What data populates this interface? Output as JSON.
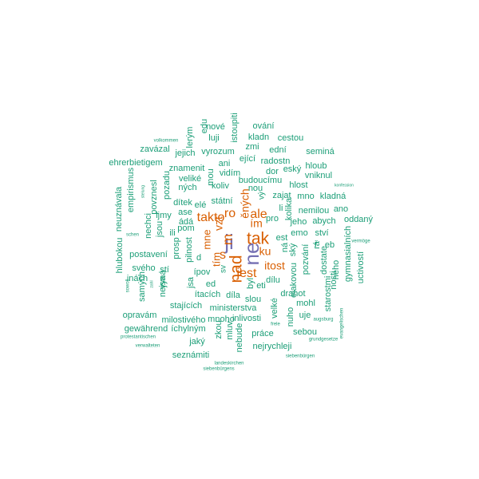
{
  "colors": {
    "background": "#ffffff",
    "teal": "#1b9e77",
    "orange": "#d95f02",
    "purple": "#7570b3"
  },
  "words": [
    {
      "text": "ji",
      "color": "purple",
      "rank": 1
    },
    {
      "text": "ne",
      "color": "purple",
      "rank": 1
    },
    {
      "text": "tak",
      "color": "orange",
      "rank": 2
    },
    {
      "text": "nad",
      "color": "orange",
      "rank": 2
    },
    {
      "text": "ale",
      "color": "orange",
      "rank": 3
    },
    {
      "text": "ro",
      "color": "orange",
      "rank": 3
    },
    {
      "text": "takto",
      "color": "orange",
      "rank": 3
    },
    {
      "text": "jest",
      "color": "orange",
      "rank": 3
    },
    {
      "text": "itost",
      "color": "orange",
      "rank": 3
    },
    {
      "text": "ím",
      "color": "orange",
      "rank": 3
    },
    {
      "text": "ku",
      "color": "orange",
      "rank": 3
    },
    {
      "text": "s",
      "color": "orange",
      "rank": 3
    },
    {
      "text": "m",
      "color": "orange",
      "rank": 3
    },
    {
      "text": "vzt",
      "color": "orange",
      "rank": 3
    },
    {
      "text": "ěných",
      "color": "orange",
      "rank": 3
    },
    {
      "text": "mne",
      "color": "orange",
      "rank": 3
    },
    {
      "text": "tím",
      "color": "orange",
      "rank": 3
    },
    {
      "text": "nové",
      "color": "teal",
      "rank": 4
    },
    {
      "text": "ování",
      "color": "teal",
      "rank": 4
    },
    {
      "text": "istoupiti",
      "color": "teal",
      "rank": 4
    },
    {
      "text": "kladn",
      "color": "teal",
      "rank": 4
    },
    {
      "text": "luji",
      "color": "teal",
      "rank": 4
    },
    {
      "text": "edu",
      "color": "teal",
      "rank": 4
    },
    {
      "text": "lerým",
      "color": "teal",
      "rank": 4
    },
    {
      "text": "zmi",
      "color": "teal",
      "rank": 4
    },
    {
      "text": "cestou",
      "color": "teal",
      "rank": 4
    },
    {
      "text": "volkommen",
      "color": "teal",
      "rank": 5
    },
    {
      "text": "zavázal",
      "color": "teal",
      "rank": 4
    },
    {
      "text": "jejich",
      "color": "teal",
      "rank": 4
    },
    {
      "text": "vyrozum",
      "color": "teal",
      "rank": 4
    },
    {
      "text": "ející",
      "color": "teal",
      "rank": 4
    },
    {
      "text": "radostn",
      "color": "teal",
      "rank": 4
    },
    {
      "text": "ední",
      "color": "teal",
      "rank": 4
    },
    {
      "text": "seminá",
      "color": "teal",
      "rank": 4
    },
    {
      "text": "ehrerbietigem",
      "color": "teal",
      "rank": 4
    },
    {
      "text": "ani",
      "color": "teal",
      "rank": 4
    },
    {
      "text": "znamenit",
      "color": "teal",
      "rank": 4
    },
    {
      "text": "dor",
      "color": "teal",
      "rank": 4
    },
    {
      "text": "eský",
      "color": "teal",
      "rank": 4
    },
    {
      "text": "hloub",
      "color": "teal",
      "rank": 4
    },
    {
      "text": "vidím",
      "color": "teal",
      "rank": 4
    },
    {
      "text": "vniknul",
      "color": "teal",
      "rank": 4
    },
    {
      "text": "veliké",
      "color": "teal",
      "rank": 4
    },
    {
      "text": "budoucímu",
      "color": "teal",
      "rank": 4
    },
    {
      "text": "mou",
      "color": "teal",
      "rank": 4
    },
    {
      "text": "ných",
      "color": "teal",
      "rank": 4
    },
    {
      "text": "koliv",
      "color": "teal",
      "rank": 4
    },
    {
      "text": "nou",
      "color": "teal",
      "rank": 4
    },
    {
      "text": "hlost",
      "color": "teal",
      "rank": 4
    },
    {
      "text": "konfession",
      "color": "teal",
      "rank": 5
    },
    {
      "text": "empirismus",
      "color": "teal",
      "rank": 4
    },
    {
      "text": "pozadu",
      "color": "teal",
      "rank": 4
    },
    {
      "text": "zajat",
      "color": "teal",
      "rank": 4
    },
    {
      "text": "mno",
      "color": "teal",
      "rank": 4
    },
    {
      "text": "kladná",
      "color": "teal",
      "rank": 4
    },
    {
      "text": "neuznávala",
      "color": "teal",
      "rank": 4
    },
    {
      "text": "stelung",
      "color": "teal",
      "rank": 5
    },
    {
      "text": "povznesl",
      "color": "teal",
      "rank": 4
    },
    {
      "text": "dítek",
      "color": "teal",
      "rank": 4
    },
    {
      "text": "elé",
      "color": "teal",
      "rank": 4
    },
    {
      "text": "státní",
      "color": "teal",
      "rank": 4
    },
    {
      "text": "vý",
      "color": "teal",
      "rank": 4
    },
    {
      "text": "nemilou",
      "color": "teal",
      "rank": 4
    },
    {
      "text": "ano",
      "color": "teal",
      "rank": 4
    },
    {
      "text": "nechci",
      "color": "teal",
      "rank": 4
    },
    {
      "text": "ase",
      "color": "teal",
      "rank": 4
    },
    {
      "text": "li",
      "color": "teal",
      "rank": 4
    },
    {
      "text": "kolika",
      "color": "teal",
      "rank": 4
    },
    {
      "text": "jeho",
      "color": "teal",
      "rank": 4
    },
    {
      "text": "abych",
      "color": "teal",
      "rank": 4
    },
    {
      "text": "oddaný",
      "color": "teal",
      "rank": 4
    },
    {
      "text": "ljmy",
      "color": "teal",
      "rank": 4
    },
    {
      "text": "ádá",
      "color": "teal",
      "rank": 4
    },
    {
      "text": "pro",
      "color": "teal",
      "rank": 4
    },
    {
      "text": "emo",
      "color": "teal",
      "rank": 4
    },
    {
      "text": "ství",
      "color": "teal",
      "rank": 4
    },
    {
      "text": "schen",
      "color": "teal",
      "rank": 5
    },
    {
      "text": "jsou",
      "color": "teal",
      "rank": 4
    },
    {
      "text": "ili",
      "color": "teal",
      "rank": 4
    },
    {
      "text": "pom",
      "color": "teal",
      "rank": 4
    },
    {
      "text": "est",
      "color": "teal",
      "rank": 4
    },
    {
      "text": "vermöge",
      "color": "teal",
      "rank": 5
    },
    {
      "text": "gymnasialních",
      "color": "teal",
      "rank": 4
    },
    {
      "text": "eb",
      "color": "teal",
      "rank": 4
    },
    {
      "text": "ř",
      "color": "teal",
      "rank": 4
    },
    {
      "text": "postavení",
      "color": "teal",
      "rank": 4
    },
    {
      "text": "prosp",
      "color": "teal",
      "rank": 4
    },
    {
      "text": "pilnost",
      "color": "teal",
      "rank": 4
    },
    {
      "text": "d",
      "color": "teal",
      "rank": 4
    },
    {
      "text": "ná",
      "color": "teal",
      "rank": 4
    },
    {
      "text": "ský",
      "color": "teal",
      "rank": 4
    },
    {
      "text": "rá",
      "color": "teal",
      "rank": 4
    },
    {
      "text": "uctivostí",
      "color": "teal",
      "rank": 4
    },
    {
      "text": "hlubokou",
      "color": "teal",
      "rank": 4
    },
    {
      "text": "svého",
      "color": "teal",
      "rank": 4
    },
    {
      "text": "stí",
      "color": "teal",
      "rank": 4
    },
    {
      "text": "ípov",
      "color": "teal",
      "rank": 4
    },
    {
      "text": "sv",
      "color": "teal",
      "rank": 4
    },
    {
      "text": "eti",
      "color": "teal",
      "rank": 4
    },
    {
      "text": "pozvání",
      "color": "teal",
      "rank": 4
    },
    {
      "text": "dostate",
      "color": "teal",
      "rank": 4
    },
    {
      "text": "inách",
      "color": "teal",
      "rank": 4
    },
    {
      "text": "vyná",
      "color": "teal",
      "rank": 4
    },
    {
      "text": "jsa",
      "color": "teal",
      "rank": 4
    },
    {
      "text": "ed",
      "color": "teal",
      "rank": 4
    },
    {
      "text": "byl",
      "color": "teal",
      "rank": 4
    },
    {
      "text": "dílu",
      "color": "teal",
      "rank": 4
    },
    {
      "text": "elakovou",
      "color": "teal",
      "rank": 4
    },
    {
      "text": "nosti",
      "color": "teal",
      "rank": 4
    },
    {
      "text": "neho",
      "color": "teal",
      "rank": 4
    },
    {
      "text": "sowoll",
      "color": "teal",
      "rank": 5
    },
    {
      "text": "samých",
      "color": "teal",
      "rank": 4
    },
    {
      "text": "zahl",
      "color": "teal",
      "rank": 5
    },
    {
      "text": "nejsa",
      "color": "teal",
      "rank": 4
    },
    {
      "text": "ítacích",
      "color": "teal",
      "rank": 4
    },
    {
      "text": "díla",
      "color": "teal",
      "rank": 4
    },
    {
      "text": "drahot",
      "color": "teal",
      "rank": 4
    },
    {
      "text": "starostmi",
      "color": "teal",
      "rank": 4
    },
    {
      "text": "stajících",
      "color": "teal",
      "rank": 4
    },
    {
      "text": "slou",
      "color": "teal",
      "rank": 4
    },
    {
      "text": "velké",
      "color": "teal",
      "rank": 4
    },
    {
      "text": "mohl",
      "color": "teal",
      "rank": 4
    },
    {
      "text": "opravám",
      "color": "teal",
      "rank": 4
    },
    {
      "text": "ministerstva",
      "color": "teal",
      "rank": 4
    },
    {
      "text": "uje",
      "color": "teal",
      "rank": 4
    },
    {
      "text": "evangelischen",
      "color": "teal",
      "rank": 5
    },
    {
      "text": "milostivého",
      "color": "teal",
      "rank": 4
    },
    {
      "text": "mnoho",
      "color": "teal",
      "rank": 4
    },
    {
      "text": "inlivosti",
      "color": "teal",
      "rank": 4
    },
    {
      "text": "nuho",
      "color": "teal",
      "rank": 4
    },
    {
      "text": "frele",
      "color": "teal",
      "rank": 5
    },
    {
      "text": "augsburg",
      "color": "teal",
      "rank": 5
    },
    {
      "text": "gewährend",
      "color": "teal",
      "rank": 4
    },
    {
      "text": "íchylným",
      "color": "teal",
      "rank": 4
    },
    {
      "text": "mluv",
      "color": "teal",
      "rank": 4
    },
    {
      "text": "zkou",
      "color": "teal",
      "rank": 4
    },
    {
      "text": "práce",
      "color": "teal",
      "rank": 4
    },
    {
      "text": "sebou",
      "color": "teal",
      "rank": 4
    },
    {
      "text": "protestantischen",
      "color": "teal",
      "rank": 5
    },
    {
      "text": "jaký",
      "color": "teal",
      "rank": 4
    },
    {
      "text": "nebude",
      "color": "teal",
      "rank": 4
    },
    {
      "text": "nejrychleji",
      "color": "teal",
      "rank": 4
    },
    {
      "text": "grundgesetze",
      "color": "teal",
      "rank": 5
    },
    {
      "text": "verwalteten",
      "color": "teal",
      "rank": 5
    },
    {
      "text": "seznámiti",
      "color": "teal",
      "rank": 4
    },
    {
      "text": "siebenbürgen",
      "color": "teal",
      "rank": 5
    },
    {
      "text": "landeskirchen",
      "color": "teal",
      "rank": 5
    },
    {
      "text": "siebenbürgens",
      "color": "teal",
      "rank": 5
    }
  ]
}
